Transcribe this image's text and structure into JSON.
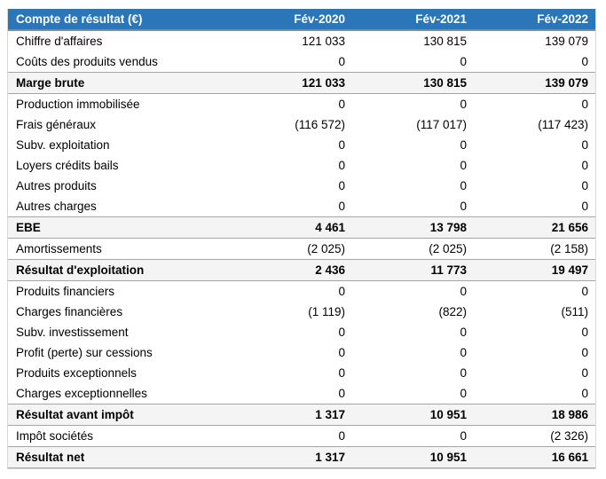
{
  "colors": {
    "header_bg": "#2b76b9",
    "header_text": "#ffffff",
    "header_bottom_border": "#8c8c8c",
    "summary_row_bg": "#f4f4f4",
    "summary_row_border": "#a6a6a6",
    "outer_border": "#d8d8d8",
    "body_text": "#000000"
  },
  "chart_data": {
    "type": "table",
    "title": "Compte de résultat (€)",
    "columns": [
      "Compte de résultat (€)",
      "Fév-2020",
      "Fév-2021",
      "Fév-2022"
    ],
    "rows": [
      {
        "label": "Chiffre d'affaires",
        "display": [
          "121 033",
          "130 815",
          "139 079"
        ],
        "values": [
          121033,
          130815,
          139079
        ],
        "emphasis": false
      },
      {
        "label": "Coûts des produits vendus",
        "display": [
          "0",
          "0",
          "0"
        ],
        "values": [
          0,
          0,
          0
        ],
        "emphasis": false
      },
      {
        "label": "Marge brute",
        "display": [
          "121 033",
          "130 815",
          "139 079"
        ],
        "values": [
          121033,
          130815,
          139079
        ],
        "emphasis": true
      },
      {
        "label": "Production immobilisée",
        "display": [
          "0",
          "0",
          "0"
        ],
        "values": [
          0,
          0,
          0
        ],
        "emphasis": false
      },
      {
        "label": "Frais généraux",
        "display": [
          "(116 572)",
          "(117 017)",
          "(117 423)"
        ],
        "values": [
          -116572,
          -117017,
          -117423
        ],
        "emphasis": false
      },
      {
        "label": "Subv. exploitation",
        "display": [
          "0",
          "0",
          "0"
        ],
        "values": [
          0,
          0,
          0
        ],
        "emphasis": false
      },
      {
        "label": "Loyers crédits bails",
        "display": [
          "0",
          "0",
          "0"
        ],
        "values": [
          0,
          0,
          0
        ],
        "emphasis": false
      },
      {
        "label": "Autres produits",
        "display": [
          "0",
          "0",
          "0"
        ],
        "values": [
          0,
          0,
          0
        ],
        "emphasis": false
      },
      {
        "label": "Autres charges",
        "display": [
          "0",
          "0",
          "0"
        ],
        "values": [
          0,
          0,
          0
        ],
        "emphasis": false
      },
      {
        "label": "EBE",
        "display": [
          "4 461",
          "13 798",
          "21 656"
        ],
        "values": [
          4461,
          13798,
          21656
        ],
        "emphasis": true
      },
      {
        "label": "Amortissements",
        "display": [
          "(2 025)",
          "(2 025)",
          "(2 158)"
        ],
        "values": [
          -2025,
          -2025,
          -2158
        ],
        "emphasis": false
      },
      {
        "label": "Résultat d'exploitation",
        "display": [
          "2 436",
          "11 773",
          "19 497"
        ],
        "values": [
          2436,
          11773,
          19497
        ],
        "emphasis": true
      },
      {
        "label": "Produits financiers",
        "display": [
          "0",
          "0",
          "0"
        ],
        "values": [
          0,
          0,
          0
        ],
        "emphasis": false
      },
      {
        "label": "Charges financières",
        "display": [
          "(1 119)",
          "(822)",
          "(511)"
        ],
        "values": [
          -1119,
          -822,
          -511
        ],
        "emphasis": false
      },
      {
        "label": "Subv. investissement",
        "display": [
          "0",
          "0",
          "0"
        ],
        "values": [
          0,
          0,
          0
        ],
        "emphasis": false
      },
      {
        "label": "Profit (perte) sur cessions",
        "display": [
          "0",
          "0",
          "0"
        ],
        "values": [
          0,
          0,
          0
        ],
        "emphasis": false
      },
      {
        "label": "Produits exceptionnels",
        "display": [
          "0",
          "0",
          "0"
        ],
        "values": [
          0,
          0,
          0
        ],
        "emphasis": false
      },
      {
        "label": "Charges exceptionnelles",
        "display": [
          "0",
          "0",
          "0"
        ],
        "values": [
          0,
          0,
          0
        ],
        "emphasis": false
      },
      {
        "label": "Résultat avant impôt",
        "display": [
          "1 317",
          "10 951",
          "18 986"
        ],
        "values": [
          1317,
          10951,
          18986
        ],
        "emphasis": true
      },
      {
        "label": "Impôt sociétés",
        "display": [
          "0",
          "0",
          "(2 326)"
        ],
        "values": [
          0,
          0,
          -2326
        ],
        "emphasis": false
      },
      {
        "label": "Résultat net",
        "display": [
          "1 317",
          "10 951",
          "16 661"
        ],
        "values": [
          1317,
          10951,
          16661
        ],
        "emphasis": true
      }
    ]
  }
}
